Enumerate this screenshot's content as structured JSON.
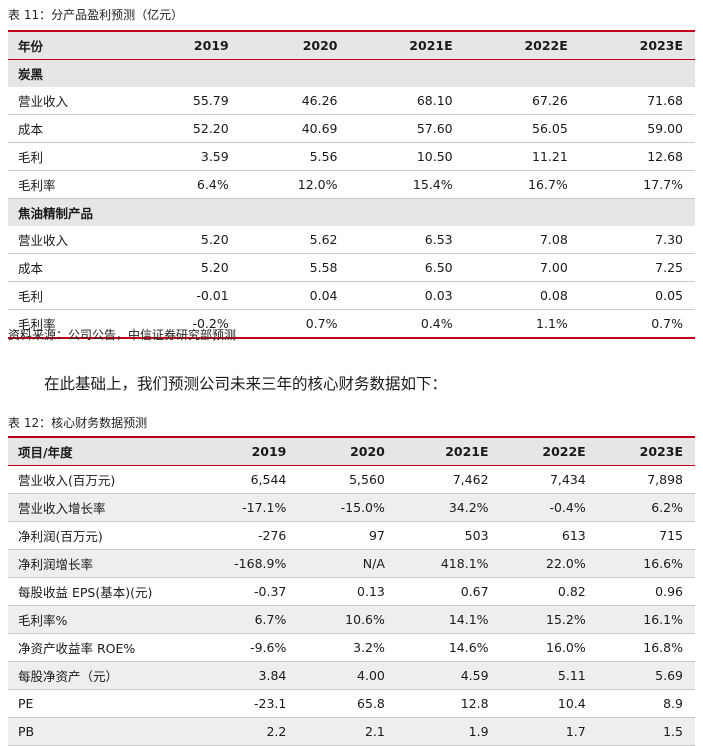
{
  "table1": {
    "caption": "表 11：分产品盈利预测（亿元）",
    "headers": [
      "年份",
      "2019",
      "2020",
      "2021E",
      "2022E",
      "2023E"
    ],
    "sections": [
      {
        "name": "炭黑",
        "rows": [
          {
            "label": "营业收入",
            "values": [
              "55.79",
              "46.26",
              "68.10",
              "67.26",
              "71.68"
            ]
          },
          {
            "label": "成本",
            "values": [
              "52.20",
              "40.69",
              "57.60",
              "56.05",
              "59.00"
            ]
          },
          {
            "label": "毛利",
            "values": [
              "3.59",
              "5.56",
              "10.50",
              "11.21",
              "12.68"
            ]
          },
          {
            "label": "毛利率",
            "values": [
              "6.4%",
              "12.0%",
              "15.4%",
              "16.7%",
              "17.7%"
            ]
          }
        ]
      },
      {
        "name": "焦油精制产品",
        "rows": [
          {
            "label": "营业收入",
            "values": [
              "5.20",
              "5.62",
              "6.53",
              "7.08",
              "7.30"
            ]
          },
          {
            "label": "成本",
            "values": [
              "5.20",
              "5.58",
              "6.50",
              "7.00",
              "7.25"
            ]
          },
          {
            "label": "毛利",
            "values": [
              "-0.01",
              "0.04",
              "0.03",
              "0.08",
              "0.05"
            ]
          },
          {
            "label": "毛利率",
            "values": [
              "-0.2%",
              "0.7%",
              "0.4%",
              "1.1%",
              "0.7%"
            ]
          }
        ]
      }
    ],
    "source": "资料来源：公司公告，中信证券研究部预测"
  },
  "paragraph": "在此基础上，我们预测公司未来三年的核心财务数据如下：",
  "table2": {
    "caption": "表 12：核心财务数据预测",
    "headers": [
      "项目/年度",
      "2019",
      "2020",
      "2021E",
      "2022E",
      "2023E"
    ],
    "rows": [
      {
        "label": "营业收入(百万元)",
        "values": [
          "6,544",
          "5,560",
          "7,462",
          "7,434",
          "7,898"
        ]
      },
      {
        "label": "营业收入增长率",
        "values": [
          "-17.1%",
          "-15.0%",
          "34.2%",
          "-0.4%",
          "6.2%"
        ]
      },
      {
        "label": "净利润(百万元)",
        "values": [
          "-276",
          "97",
          "503",
          "613",
          "715"
        ]
      },
      {
        "label": "净利润增长率",
        "values": [
          "-168.9%",
          "N/A",
          "418.1%",
          "22.0%",
          "16.6%"
        ]
      },
      {
        "label": "每股收益 EPS(基本)(元)",
        "values": [
          "-0.37",
          "0.13",
          "0.67",
          "0.82",
          "0.96"
        ]
      },
      {
        "label": "毛利率%",
        "values": [
          "6.7%",
          "10.6%",
          "14.1%",
          "15.2%",
          "16.1%"
        ]
      },
      {
        "label": "净资产收益率 ROE%",
        "values": [
          "-9.6%",
          "3.2%",
          "14.6%",
          "16.0%",
          "16.8%"
        ]
      },
      {
        "label": "每股净资产（元）",
        "values": [
          "3.84",
          "4.00",
          "4.59",
          "5.11",
          "5.69"
        ]
      },
      {
        "label": "PE",
        "values": [
          "-23.1",
          "65.8",
          "12.8",
          "10.4",
          "8.9"
        ]
      },
      {
        "label": "PB",
        "values": [
          "2.2",
          "2.1",
          "1.9",
          "1.7",
          "1.5"
        ]
      }
    ]
  }
}
